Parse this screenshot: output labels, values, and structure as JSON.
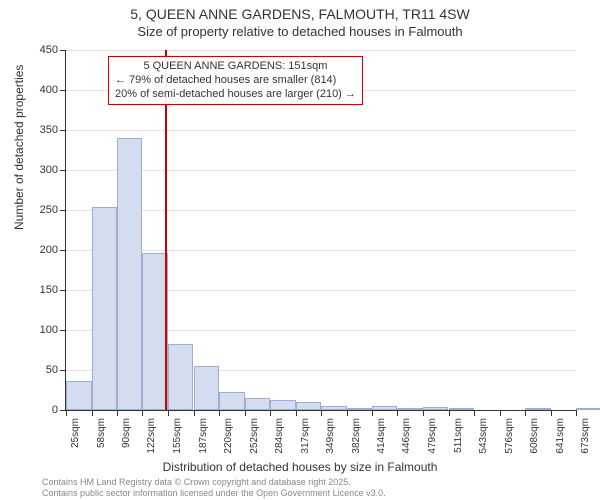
{
  "title": "5, QUEEN ANNE GARDENS, FALMOUTH, TR11 4SW",
  "subtitle": "Size of property relative to detached houses in Falmouth",
  "chart": {
    "type": "histogram",
    "x_label": "Distribution of detached houses by size in Falmouth",
    "y_label": "Number of detached properties",
    "ylim": [
      0,
      450
    ],
    "ytick_step": 50,
    "bar_fill": "#d3ddef",
    "bar_border": "#9bb0d1",
    "background_color": "#ffffff",
    "grid_color": "#cccccc",
    "marker_color": "#cc0000",
    "marker_x": 151,
    "categories": [
      "25sqm",
      "58sqm",
      "90sqm",
      "122sqm",
      "155sqm",
      "187sqm",
      "220sqm",
      "252sqm",
      "284sqm",
      "317sqm",
      "349sqm",
      "382sqm",
      "414sqm",
      "446sqm",
      "479sqm",
      "511sqm",
      "543sqm",
      "576sqm",
      "608sqm",
      "641sqm",
      "673sqm"
    ],
    "x_edges": [
      25,
      58,
      90,
      122,
      155,
      187,
      220,
      252,
      284,
      317,
      349,
      382,
      414,
      446,
      479,
      511,
      543,
      576,
      608,
      641,
      673
    ],
    "values": [
      36,
      254,
      340,
      196,
      82,
      55,
      22,
      15,
      12,
      10,
      5,
      3,
      5,
      3,
      4,
      2,
      0,
      0,
      2,
      0,
      2
    ],
    "title_fontsize": 14,
    "subtitle_fontsize": 13,
    "label_fontsize": 12,
    "tick_fontsize": 11
  },
  "annotation": {
    "line1": "5 QUEEN ANNE GARDENS: 151sqm",
    "line2": "← 79% of detached houses are smaller (814)",
    "line3": "20% of semi-detached houses are larger (210) →",
    "border_color": "#cc0000"
  },
  "footer": {
    "line1": "Contains HM Land Registry data © Crown copyright and database right 2025.",
    "line2": "Contains public sector information licensed under the Open Government Licence v3.0."
  }
}
